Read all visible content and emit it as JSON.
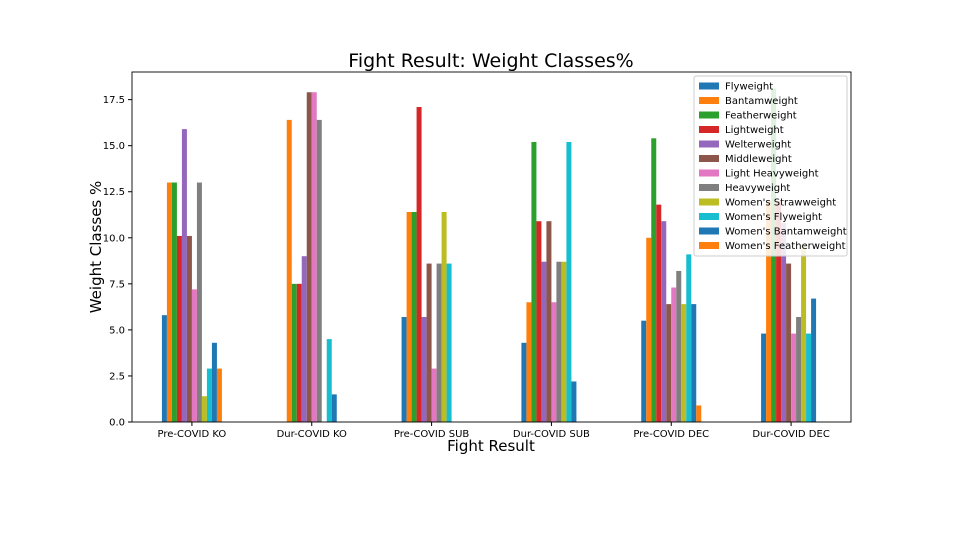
{
  "chart_data": {
    "type": "bar",
    "title": "Fight Result: Weight Classes%",
    "xlabel": "Fight Result",
    "ylabel": "Weight Classes %",
    "ylim": [
      0,
      19
    ],
    "yticks": [
      0.0,
      2.5,
      5.0,
      7.5,
      10.0,
      12.5,
      15.0,
      17.5
    ],
    "ytick_labels": [
      "0.0",
      "2.5",
      "5.0",
      "7.5",
      "10.0",
      "12.5",
      "15.0",
      "17.5"
    ],
    "grid": false,
    "legend_position": "top-right",
    "categories": [
      "Pre-COVID KO",
      "Dur-COVID KO",
      "Pre-COVID SUB",
      "Dur-COVID SUB",
      "Pre-COVID DEC",
      "Dur-COVID DEC"
    ],
    "series": [
      {
        "name": "Flyweight",
        "color": "#1f77b4",
        "values": [
          5.8,
          0,
          5.7,
          4.3,
          5.5,
          4.8
        ]
      },
      {
        "name": "Bantamweight",
        "color": "#ff7f0e",
        "values": [
          13.0,
          16.4,
          11.4,
          6.5,
          10.0,
          12.0
        ]
      },
      {
        "name": "Featherweight",
        "color": "#2ca02c",
        "values": [
          13.0,
          7.5,
          11.4,
          15.2,
          15.4,
          18.1
        ]
      },
      {
        "name": "Lightweight",
        "color": "#d62728",
        "values": [
          10.1,
          7.5,
          17.1,
          10.9,
          11.8,
          12.0
        ]
      },
      {
        "name": "Welterweight",
        "color": "#9467bd",
        "values": [
          15.9,
          9.0,
          5.7,
          8.7,
          10.9,
          10.8
        ]
      },
      {
        "name": "Middleweight",
        "color": "#8c564b",
        "values": [
          10.1,
          17.9,
          8.6,
          10.9,
          6.4,
          8.6
        ]
      },
      {
        "name": "Light Heavyweight",
        "color": "#e377c2",
        "values": [
          7.2,
          17.9,
          2.9,
          6.5,
          7.3,
          4.8
        ]
      },
      {
        "name": "Heavyweight",
        "color": "#7f7f7f",
        "values": [
          13.0,
          16.4,
          8.6,
          8.7,
          8.2,
          5.7
        ]
      },
      {
        "name": "Women's Strawweight",
        "color": "#bcbd22",
        "values": [
          1.4,
          0,
          11.4,
          8.7,
          6.4,
          9.6
        ]
      },
      {
        "name": "Women's Flyweight",
        "color": "#17becf",
        "values": [
          2.9,
          4.5,
          8.6,
          15.2,
          9.1,
          4.8
        ]
      },
      {
        "name": "Women's Bantamweight",
        "color": "#1f77b4",
        "values": [
          4.3,
          1.5,
          0,
          2.2,
          6.4,
          6.7
        ]
      },
      {
        "name": "Women's Featherweight",
        "color": "#ff7f0e",
        "values": [
          2.9,
          0,
          0,
          0,
          0.9,
          0
        ]
      }
    ]
  }
}
